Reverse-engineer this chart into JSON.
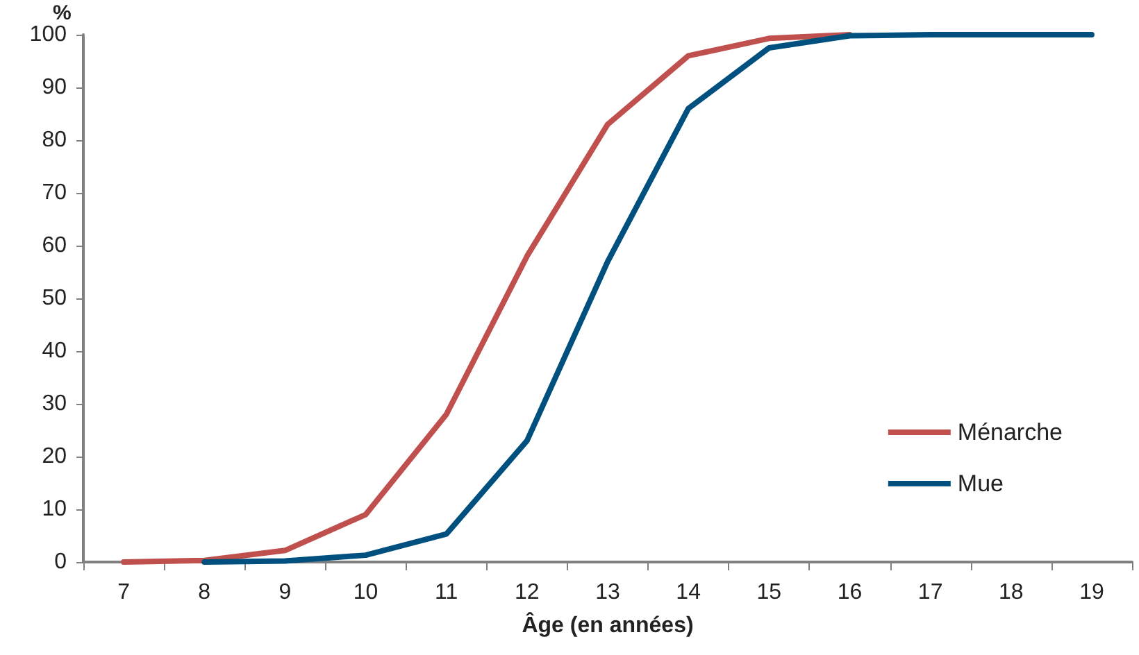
{
  "chart_data": {
    "type": "line",
    "xlabel": "Âge (en années)",
    "ylabel": "%",
    "categories": [
      "7",
      "8",
      "9",
      "10",
      "11",
      "12",
      "13",
      "14",
      "15",
      "16",
      "17",
      "18",
      "19"
    ],
    "series": [
      {
        "name": "Ménarche",
        "color": "#c0504d",
        "values": [
          0,
          0.3,
          2.2,
          9,
          28,
          58,
          83,
          96,
          99.3,
          100,
          null,
          null,
          null
        ]
      },
      {
        "name": "Mue",
        "color": "#00507f",
        "values": [
          null,
          0,
          0.2,
          1.3,
          5.3,
          23,
          57,
          86,
          97.5,
          99.8,
          100,
          100,
          100
        ]
      }
    ],
    "ylim": [
      0,
      100
    ],
    "yticks": [
      0,
      10,
      20,
      30,
      40,
      50,
      60,
      70,
      80,
      90,
      100
    ],
    "grid": false,
    "legend": "bottom right",
    "marker": "none",
    "line_style": "solid"
  }
}
